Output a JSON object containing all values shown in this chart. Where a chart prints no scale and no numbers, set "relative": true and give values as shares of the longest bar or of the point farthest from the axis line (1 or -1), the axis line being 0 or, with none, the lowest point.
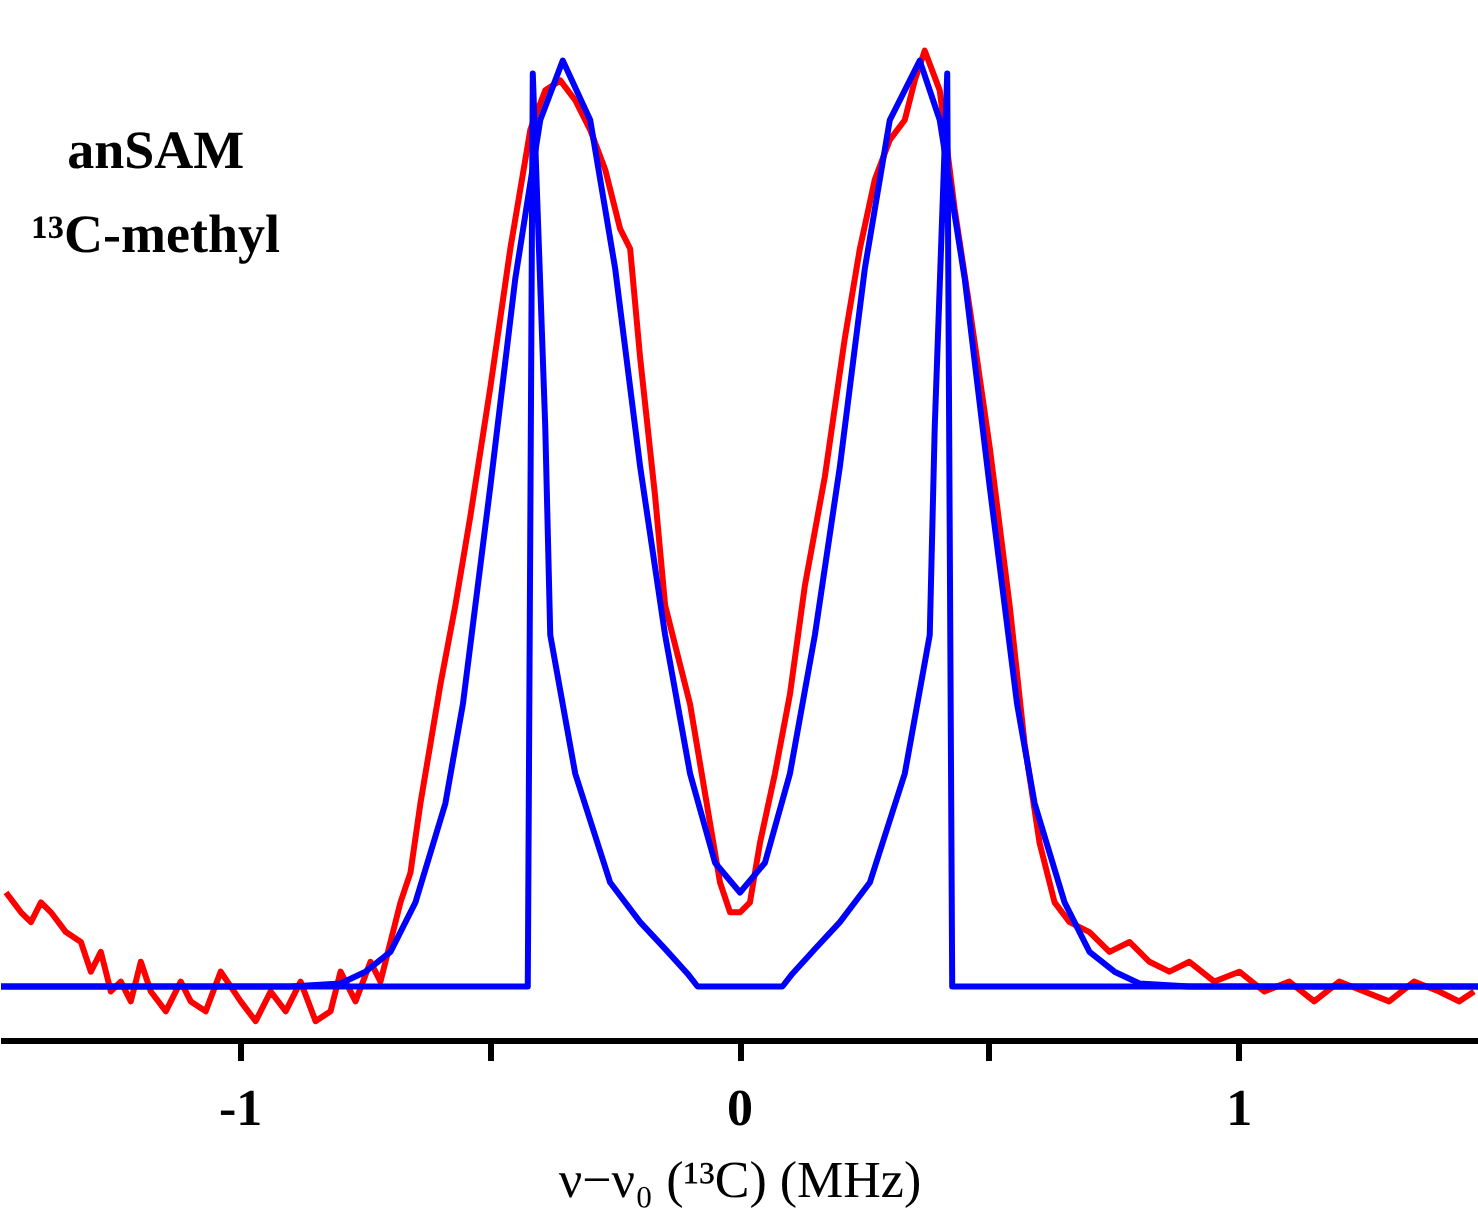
{
  "chart_data": {
    "type": "line",
    "relative": true,
    "xlabel": "ν−ν₀ (¹³C) (MHz)",
    "annotations": [
      "anSAM",
      "¹³C-methyl"
    ],
    "xlim": [
      -1.48,
      1.48
    ],
    "xticks": [
      -1,
      {
        "value": -0.5,
        "label": null
      },
      0,
      {
        "value": 0.5,
        "label": null
      },
      1
    ],
    "grid": false,
    "marker": "none",
    "line_style": "solid",
    "series": [
      {
        "color": "#ff0000",
        "x": [
          -1.47,
          -1.44,
          -1.42,
          -1.4,
          -1.38,
          -1.35,
          -1.32,
          -1.3,
          -1.28,
          -1.26,
          -1.24,
          -1.22,
          -1.2,
          -1.18,
          -1.15,
          -1.12,
          -1.1,
          -1.07,
          -1.04,
          -1.0,
          -0.97,
          -0.94,
          -0.91,
          -0.88,
          -0.85,
          -0.82,
          -0.8,
          -0.77,
          -0.74,
          -0.72,
          -0.7,
          -0.68,
          -0.66,
          -0.64,
          -0.62,
          -0.6,
          -0.57,
          -0.54,
          -0.5,
          -0.46,
          -0.42,
          -0.39,
          -0.36,
          -0.33,
          -0.3,
          -0.27,
          -0.24,
          -0.22,
          -0.2,
          -0.17,
          -0.15,
          -0.12,
          -0.1,
          -0.07,
          -0.04,
          -0.02,
          0.0,
          0.02,
          0.04,
          0.07,
          0.1,
          0.13,
          0.17,
          0.21,
          0.24,
          0.27,
          0.3,
          0.33,
          0.35,
          0.37,
          0.4,
          0.43,
          0.46,
          0.5,
          0.54,
          0.57,
          0.6,
          0.63,
          0.66,
          0.7,
          0.74,
          0.78,
          0.82,
          0.86,
          0.9,
          0.95,
          1.0,
          1.05,
          1.1,
          1.15,
          1.2,
          1.25,
          1.3,
          1.35,
          1.4,
          1.44,
          1.47
        ],
        "values": [
          0.15,
          0.13,
          0.12,
          0.14,
          0.13,
          0.11,
          0.1,
          0.07,
          0.09,
          0.05,
          0.06,
          0.04,
          0.08,
          0.05,
          0.03,
          0.06,
          0.04,
          0.03,
          0.07,
          0.04,
          0.02,
          0.05,
          0.03,
          0.06,
          0.02,
          0.03,
          0.07,
          0.04,
          0.08,
          0.06,
          0.1,
          0.14,
          0.17,
          0.24,
          0.3,
          0.36,
          0.44,
          0.53,
          0.66,
          0.8,
          0.92,
          0.96,
          0.97,
          0.95,
          0.92,
          0.88,
          0.82,
          0.8,
          0.69,
          0.55,
          0.44,
          0.38,
          0.34,
          0.25,
          0.16,
          0.13,
          0.13,
          0.14,
          0.2,
          0.27,
          0.35,
          0.46,
          0.57,
          0.71,
          0.8,
          0.87,
          0.91,
          0.93,
          0.97,
          1.0,
          0.96,
          0.84,
          0.74,
          0.6,
          0.44,
          0.3,
          0.2,
          0.14,
          0.12,
          0.11,
          0.09,
          0.1,
          0.08,
          0.07,
          0.08,
          0.06,
          0.07,
          0.05,
          0.06,
          0.04,
          0.06,
          0.05,
          0.04,
          0.06,
          0.05,
          0.04,
          0.05
        ]
      },
      {
        "color": "#0000ff",
        "x": [
          -1.48,
          -0.9,
          -0.8,
          -0.75,
          -0.7,
          -0.65,
          -0.59,
          -0.555,
          -0.5,
          -0.45,
          -0.4,
          -0.355,
          -0.3,
          -0.25,
          -0.2,
          -0.15,
          -0.1,
          -0.05,
          0.0,
          0.05,
          0.1,
          0.15,
          0.2,
          0.25,
          0.3,
          0.36,
          0.4,
          0.45,
          0.5,
          0.555,
          0.59,
          0.65,
          0.7,
          0.75,
          0.8,
          0.9,
          1.48
        ],
        "values": [
          0.055,
          0.055,
          0.058,
          0.07,
          0.09,
          0.14,
          0.24,
          0.34,
          0.56,
          0.77,
          0.93,
          0.99,
          0.93,
          0.78,
          0.58,
          0.41,
          0.27,
          0.18,
          0.15,
          0.18,
          0.27,
          0.41,
          0.58,
          0.78,
          0.93,
          0.99,
          0.93,
          0.77,
          0.56,
          0.34,
          0.24,
          0.14,
          0.09,
          0.07,
          0.058,
          0.055,
          0.055
        ]
      },
      {
        "color": "#0000ff",
        "x": [
          -1.48,
          -0.425,
          -0.415,
          -0.39,
          -0.38,
          -0.33,
          -0.26,
          -0.2,
          -0.15,
          -0.105,
          -0.085,
          0.085,
          0.105,
          0.15,
          0.2,
          0.26,
          0.33,
          0.38,
          0.39,
          0.415,
          0.425,
          1.48
        ],
        "values": [
          0.055,
          0.055,
          0.977,
          0.62,
          0.41,
          0.27,
          0.16,
          0.12,
          0.093,
          0.068,
          0.055,
          0.055,
          0.068,
          0.093,
          0.12,
          0.16,
          0.27,
          0.41,
          0.62,
          0.977,
          0.055,
          0.055
        ]
      }
    ]
  }
}
